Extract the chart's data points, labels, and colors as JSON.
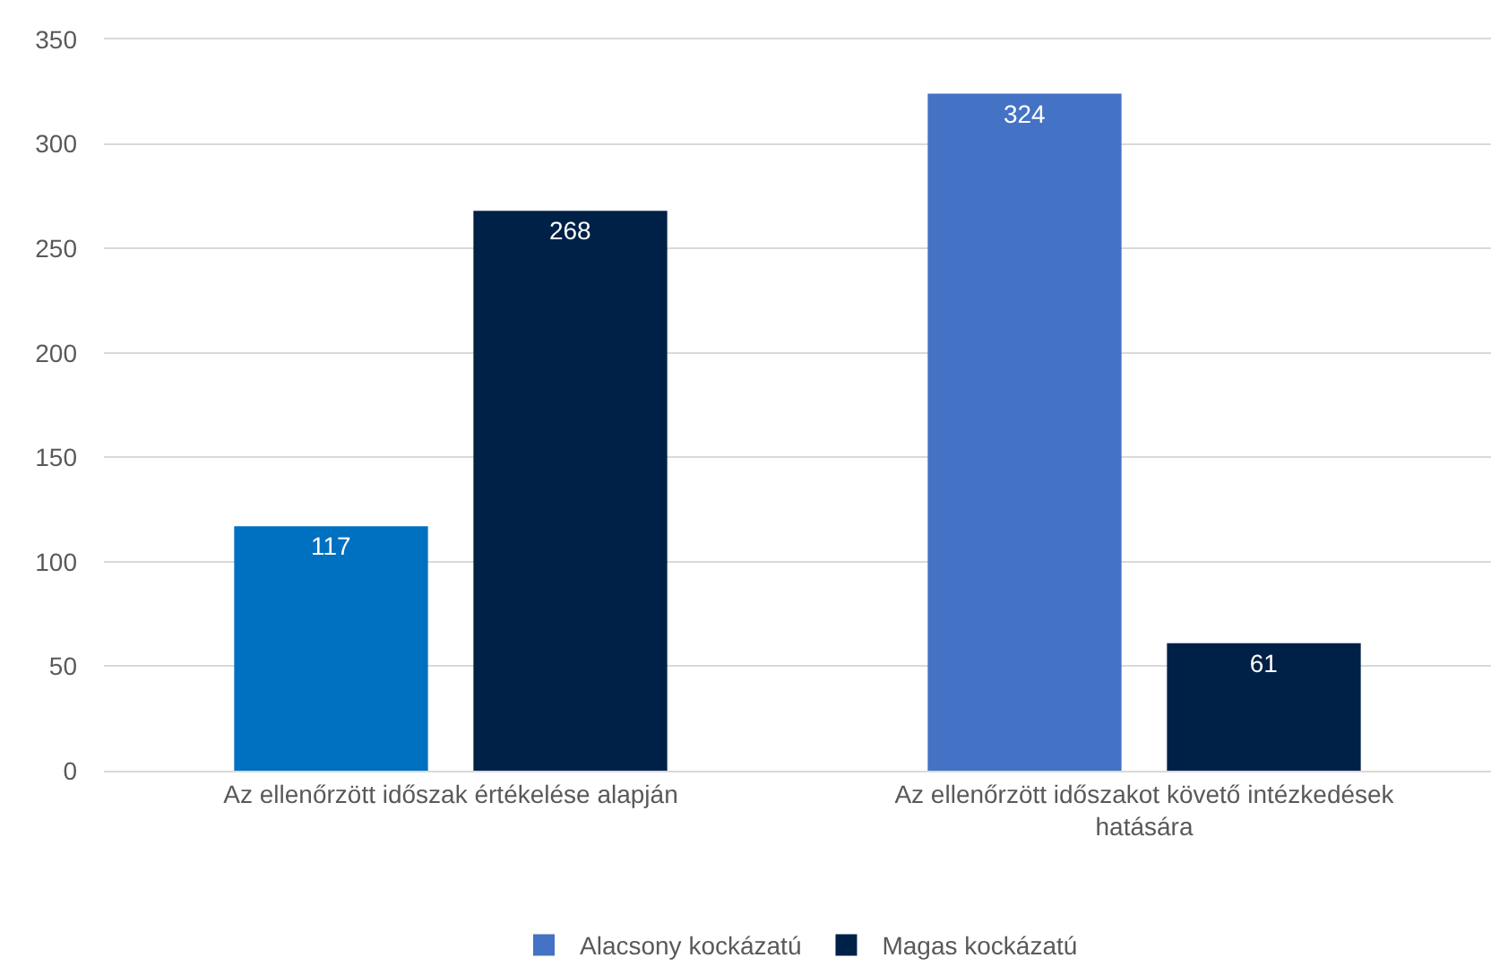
{
  "chart_data": {
    "type": "bar",
    "categories": [
      "Az ellenőrzött időszak értékelése alapján",
      "Az ellenőrzött időszakot követő intézkedések hatására"
    ],
    "series": [
      {
        "name": "Alacsony kockázatú",
        "color": "#4472c4",
        "colors": [
          "#0070c0",
          "#4472c4"
        ],
        "values": [
          117,
          324
        ]
      },
      {
        "name": "Magas kockázatú",
        "color": "#002147",
        "values": [
          268,
          61
        ]
      }
    ],
    "ylim": [
      0,
      350
    ],
    "yticks": [
      0,
      50,
      100,
      150,
      200,
      250,
      300,
      350
    ],
    "grid": "y",
    "legend": "bottom",
    "data_labels": true
  }
}
